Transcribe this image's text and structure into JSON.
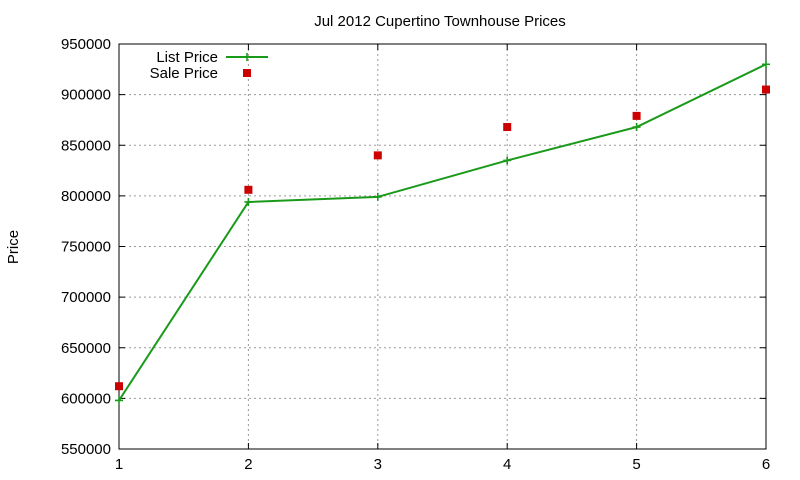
{
  "chart_data": {
    "type": "line",
    "title": "Jul 2012 Cupertino Townhouse Prices",
    "xlabel": "",
    "ylabel": "Price",
    "x": [
      1,
      2,
      3,
      4,
      5,
      6
    ],
    "xlim": [
      1,
      6
    ],
    "ylim": [
      550000,
      950000
    ],
    "xticks": [
      "1",
      "2",
      "3",
      "4",
      "5",
      "6"
    ],
    "yticks": [
      "550000",
      "600000",
      "650000",
      "700000",
      "750000",
      "800000",
      "850000",
      "900000",
      "950000"
    ],
    "grid": true,
    "legend_position": "top-left",
    "series": [
      {
        "name": "List Price",
        "style": "line-with-plus-markers",
        "color": "#1a9a1a",
        "values": [
          598000,
          794000,
          799000,
          835000,
          868000,
          930000
        ]
      },
      {
        "name": "Sale Price",
        "style": "square-markers",
        "color": "#cc0000",
        "values": [
          612000,
          806000,
          840000,
          868000,
          879000,
          905000
        ]
      }
    ]
  }
}
